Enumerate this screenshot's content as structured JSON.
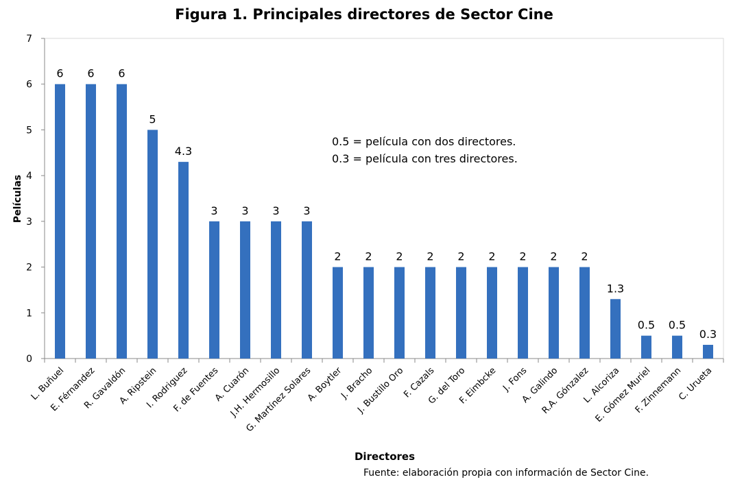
{
  "chart_data": {
    "type": "bar",
    "title": "Figura 1. Principales directores de Sector Cine",
    "xlabel": "Directores",
    "ylabel": "Películas",
    "ylim": [
      0,
      7
    ],
    "yticks": [
      0,
      1,
      2,
      3,
      4,
      5,
      6,
      7
    ],
    "grid": false,
    "bar_color": "#3470BE",
    "categories": [
      "L. Buñuel",
      "E. Férnandez",
      "R. Gavaldón",
      "A. Ripstein",
      "I. Rodriguez",
      "F. de Fuentes",
      "A. Cuarón",
      "J.H. Hermosillo",
      "G. Martínez Solares",
      "A. Boytler",
      "J. Bracho",
      "J. Bustillo Oro",
      "F. Cazals",
      "G. del Toro",
      "F. Eimbcke",
      "J. Fons",
      "A. Galindo",
      "R.A. Gónzalez",
      "L. Alcoriza",
      "E. Gómez Muriel",
      "F. Zinnemann",
      "C. Urueta"
    ],
    "values": [
      6,
      6,
      6,
      5,
      4.3,
      3,
      3,
      3,
      3,
      2,
      2,
      2,
      2,
      2,
      2,
      2,
      2,
      2,
      1.3,
      0.5,
      0.5,
      0.3
    ],
    "data_labels": [
      "6",
      "6",
      "6",
      "5",
      "4.3",
      "3",
      "3",
      "3",
      "3",
      "2",
      "2",
      "2",
      "2",
      "2",
      "2",
      "2",
      "2",
      "2",
      "1.3",
      "0.5",
      "0.5",
      "0.3"
    ],
    "annotations": [
      "0.5 = película con dos directores.",
      "0.3 = película con tres directores."
    ],
    "source": "Fuente: elaboración propia con información de Sector Cine."
  }
}
